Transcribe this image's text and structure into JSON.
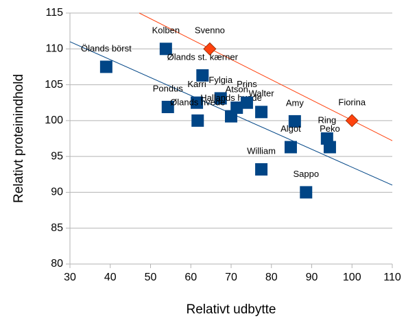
{
  "chart_data": {
    "type": "scatter",
    "xlabel": "Relativt udbytte",
    "ylabel": "Relativt proteinindhold",
    "xlim": [
      30,
      110
    ],
    "ylim": [
      80,
      115
    ],
    "xticks": [
      30,
      40,
      50,
      60,
      70,
      80,
      90,
      100,
      110
    ],
    "yticks": [
      80,
      85,
      90,
      95,
      100,
      105,
      110,
      115
    ],
    "grid": true,
    "series": [
      {
        "color": "#004586",
        "marker": "square",
        "labels": [
          "Ölands börst",
          "Kolben",
          "Ølands st. kærner",
          "Pondus",
          "Karri",
          "Fylgia",
          "Ølands hvede",
          "Hallands hvede",
          "Atson",
          "Prins",
          "Walter",
          "Amy",
          "Algot",
          "Ring",
          "Peko",
          "William",
          "Sappo"
        ],
        "x": [
          39.0,
          53.8,
          62.9,
          54.3,
          61.5,
          67.4,
          61.7,
          70.0,
          71.4,
          73.9,
          77.5,
          85.8,
          84.8,
          93.8,
          94.5,
          77.5,
          88.6
        ],
        "values": [
          107.5,
          110.0,
          106.3,
          101.9,
          102.5,
          103.1,
          100.0,
          100.6,
          101.8,
          102.5,
          101.2,
          99.9,
          96.3,
          97.5,
          96.3,
          93.2,
          90.0
        ]
      },
      {
        "color": "#ff420e",
        "marker": "diamond",
        "labels": [
          "Svenno",
          "Fiorina"
        ],
        "x": [
          64.7,
          100
        ],
        "values": [
          110.0,
          100.0
        ]
      }
    ],
    "trendlines": [
      {
        "color": "#004586",
        "x": [
          30,
          110
        ],
        "values": [
          111.0,
          91.0
        ]
      },
      {
        "color": "#ff420e",
        "x": [
          47.2,
          110
        ],
        "values": [
          115,
          97.2
        ]
      }
    ]
  }
}
